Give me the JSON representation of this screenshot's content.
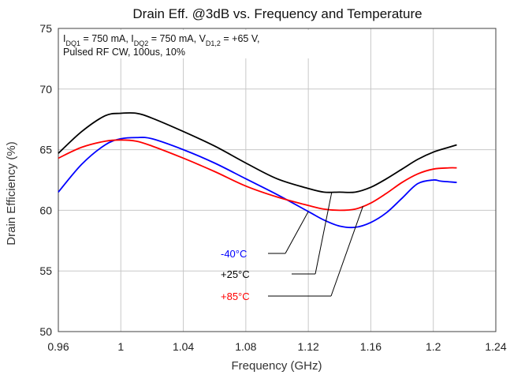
{
  "chart_data": {
    "type": "line",
    "title": "Drain Eff. @3dB vs. Frequency and Temperature",
    "xlabel": "Frequency (GHz)",
    "ylabel": "Drain Efficiency (%)",
    "xlim": [
      0.96,
      1.24
    ],
    "ylim": [
      50,
      75
    ],
    "xticks": [
      "0.96",
      "1",
      "1.04",
      "1.08",
      "1.12",
      "1.16",
      "1.2",
      "1.24"
    ],
    "yticks": [
      "50",
      "55",
      "60",
      "65",
      "70",
      "75"
    ],
    "grid": "vertical",
    "annotation": {
      "line1": "I_DQ1 = 750 mA, I_DQ2 = 750 mA, V_D1,2 = +65 V,",
      "line2": "Pulsed RF CW, 100us, 10%"
    },
    "series": [
      {
        "name": "-40°C",
        "color": "#0000ff",
        "x": [
          0.96,
          0.975,
          0.99,
          1.0,
          1.01,
          1.02,
          1.04,
          1.06,
          1.08,
          1.1,
          1.12,
          1.13,
          1.14,
          1.15,
          1.16,
          1.17,
          1.18,
          1.19,
          1.2,
          1.205,
          1.215
        ],
        "y": [
          61.5,
          63.8,
          65.4,
          65.9,
          66.0,
          65.9,
          65.0,
          63.9,
          62.6,
          61.3,
          59.9,
          59.2,
          58.7,
          58.6,
          59.0,
          59.8,
          61.0,
          62.2,
          62.5,
          62.4,
          62.3
        ]
      },
      {
        "name": "+25°C",
        "color": "#000000",
        "x": [
          0.96,
          0.975,
          0.99,
          1.0,
          1.01,
          1.02,
          1.04,
          1.06,
          1.08,
          1.1,
          1.12,
          1.13,
          1.14,
          1.15,
          1.16,
          1.17,
          1.18,
          1.19,
          1.2,
          1.21,
          1.215
        ],
        "y": [
          64.7,
          66.5,
          67.8,
          68.0,
          68.0,
          67.6,
          66.5,
          65.3,
          63.9,
          62.6,
          61.8,
          61.5,
          61.5,
          61.5,
          61.9,
          62.6,
          63.4,
          64.2,
          64.8,
          65.2,
          65.4
        ]
      },
      {
        "name": "+85°C",
        "color": "#ff0000",
        "x": [
          0.96,
          0.975,
          0.99,
          1.0,
          1.01,
          1.02,
          1.04,
          1.06,
          1.08,
          1.1,
          1.12,
          1.13,
          1.14,
          1.15,
          1.16,
          1.17,
          1.18,
          1.19,
          1.2,
          1.21,
          1.215
        ],
        "y": [
          64.3,
          65.2,
          65.7,
          65.8,
          65.7,
          65.3,
          64.3,
          63.2,
          62.0,
          61.1,
          60.4,
          60.1,
          60.0,
          60.1,
          60.6,
          61.4,
          62.3,
          63.0,
          63.4,
          63.5,
          63.5
        ]
      }
    ],
    "legend_placement": "bottom-center, labels with leader lines"
  }
}
